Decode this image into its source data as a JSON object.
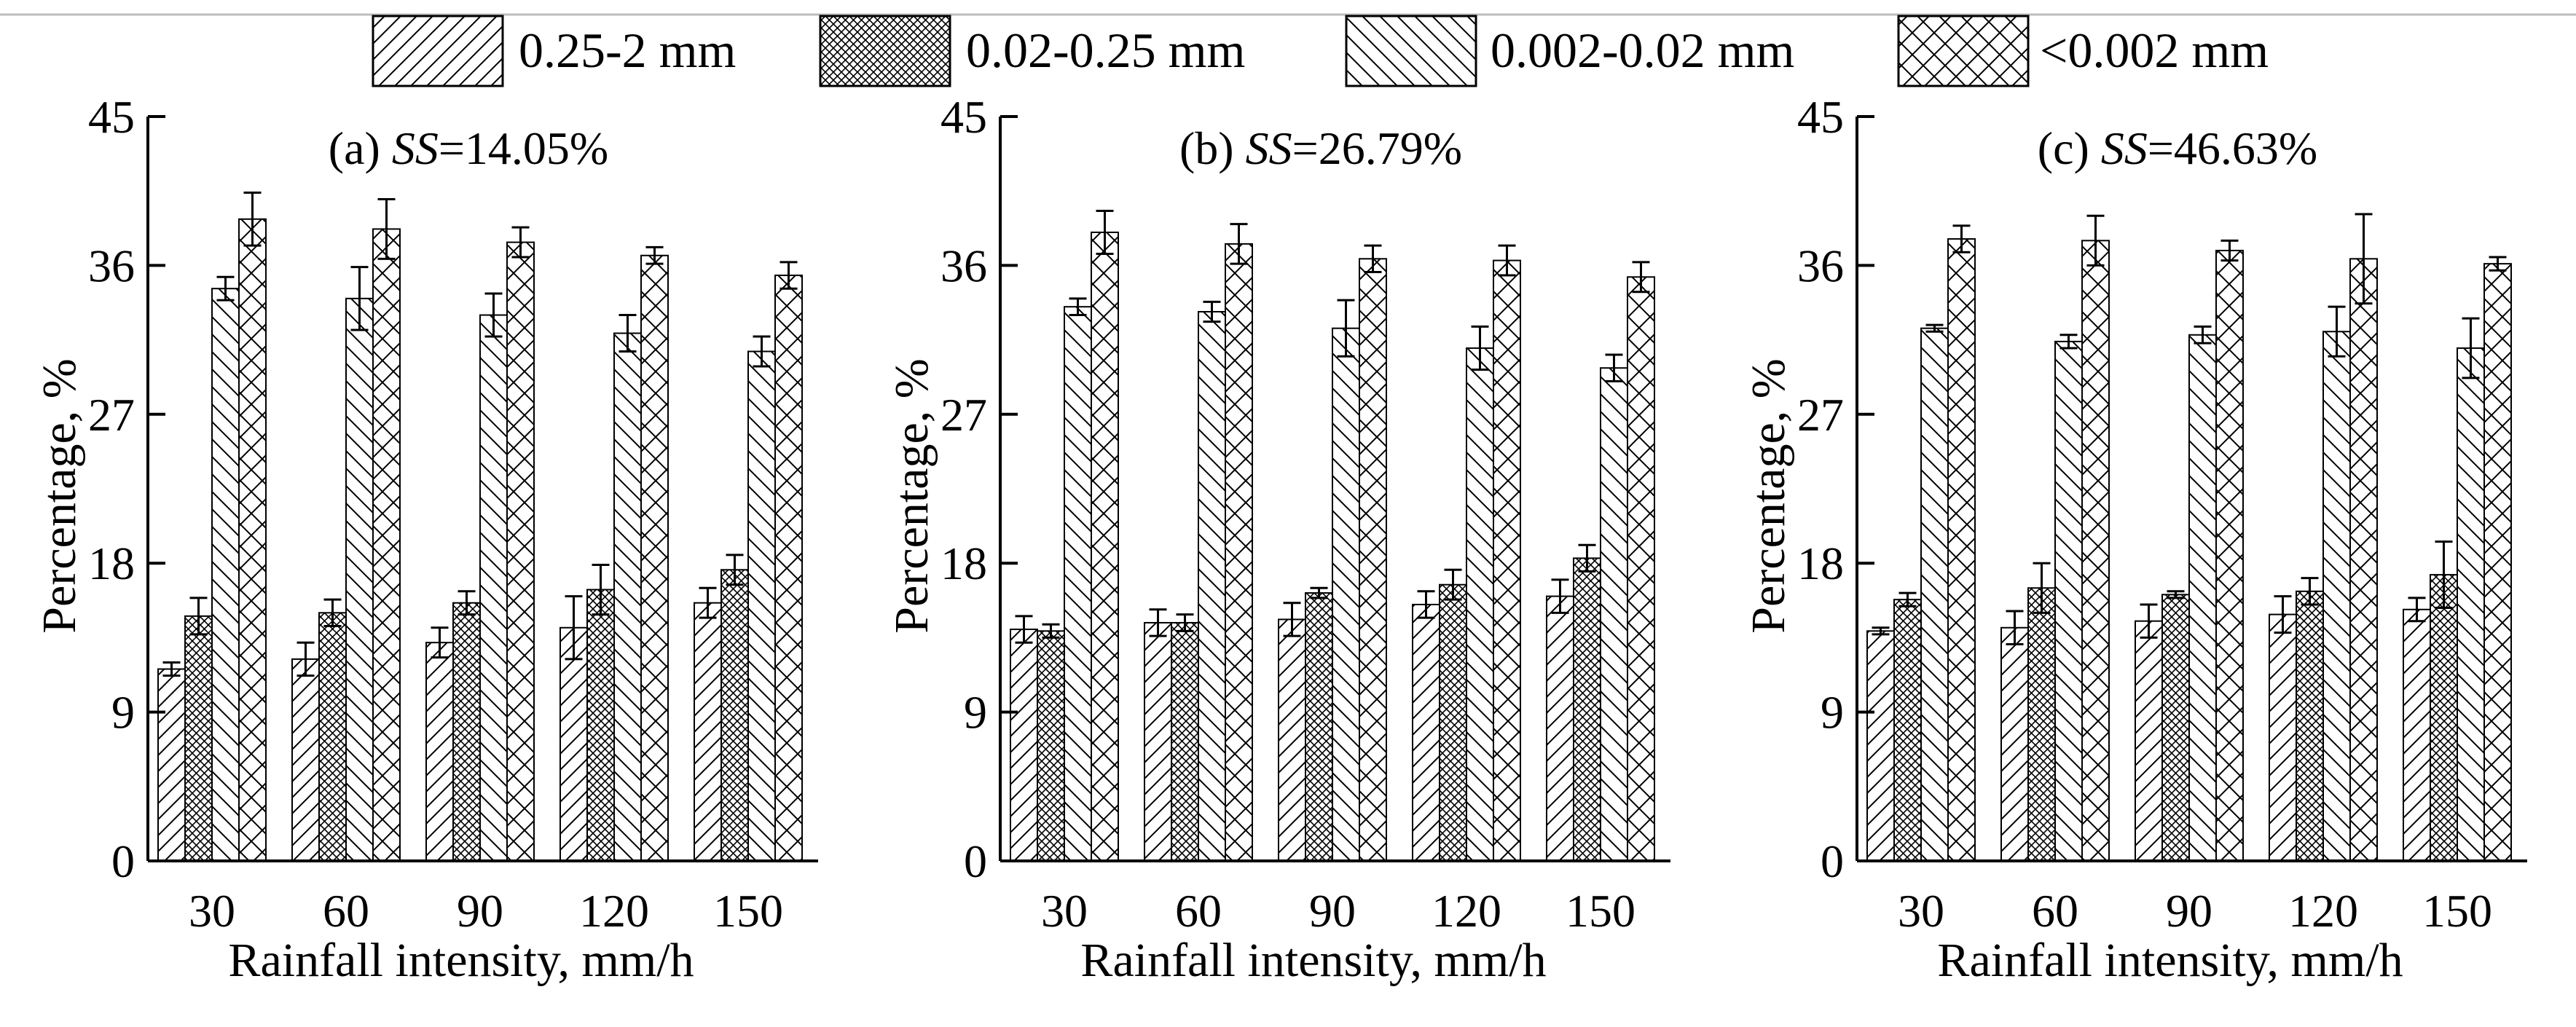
{
  "chart_data": {
    "type": "bar",
    "legend": {
      "placement": "top-center",
      "entries": [
        {
          "label": "0.25-2 mm",
          "pattern": "forward-hatch"
        },
        {
          "label": "0.02-0.25 mm",
          "pattern": "dense-crosshatch"
        },
        {
          "label": "0.002-0.02 mm",
          "pattern": "back-hatch"
        },
        {
          "label": "<0.002 mm",
          "pattern": "sparse-crosshatch"
        }
      ]
    },
    "panels": [
      {
        "title_prefix": "(a) ",
        "title_italic": "SS",
        "title_suffix": "=14.05%",
        "xlabel": "Rainfall intensity, mm/h",
        "ylabel": "Percentage, %",
        "categories": [
          "30",
          "60",
          "90",
          "120",
          "150"
        ],
        "yticks": [
          "0",
          "9",
          "18",
          "27",
          "36",
          "45"
        ],
        "ylim": [
          0,
          45
        ],
        "series": [
          {
            "name": "0.25-2 mm",
            "values": [
              11.6,
              12.2,
              13.2,
              14.1,
              15.6
            ],
            "errors": [
              0.4,
              1.0,
              0.9,
              1.9,
              0.9
            ]
          },
          {
            "name": "0.02-0.25 mm",
            "values": [
              14.8,
              15.0,
              15.6,
              16.4,
              17.6
            ],
            "errors": [
              1.1,
              0.8,
              0.7,
              1.5,
              0.9
            ]
          },
          {
            "name": "0.002-0.02 mm",
            "values": [
              34.6,
              34.0,
              33.0,
              31.9,
              30.8
            ],
            "errors": [
              0.7,
              1.9,
              1.3,
              1.1,
              0.9
            ]
          },
          {
            "name": "<0.002 mm",
            "values": [
              38.8,
              38.2,
              37.4,
              36.6,
              35.4
            ],
            "errors": [
              1.6,
              1.8,
              0.9,
              0.5,
              0.8
            ]
          }
        ]
      },
      {
        "title_prefix": "(b) ",
        "title_italic": "SS",
        "title_suffix": "=26.79%",
        "xlabel": "Rainfall intensity, mm/h",
        "ylabel": "Percentage, %",
        "categories": [
          "30",
          "60",
          "90",
          "120",
          "150"
        ],
        "yticks": [
          "0",
          "9",
          "18",
          "27",
          "36",
          "45"
        ],
        "ylim": [
          0,
          45
        ],
        "series": [
          {
            "name": "0.25-2 mm",
            "values": [
              14.0,
              14.4,
              14.6,
              15.5,
              16.0
            ],
            "errors": [
              0.8,
              0.8,
              1.0,
              0.8,
              1.0
            ]
          },
          {
            "name": "0.02-0.25 mm",
            "values": [
              13.9,
              14.4,
              16.2,
              16.7,
              18.3
            ],
            "errors": [
              0.4,
              0.5,
              0.3,
              0.9,
              0.8
            ]
          },
          {
            "name": "0.002-0.02 mm",
            "values": [
              33.5,
              33.2,
              32.2,
              31.0,
              29.8
            ],
            "errors": [
              0.5,
              0.6,
              1.7,
              1.3,
              0.8
            ]
          },
          {
            "name": "<0.002 mm",
            "values": [
              38.0,
              37.3,
              36.4,
              36.3,
              35.3
            ],
            "errors": [
              1.3,
              1.2,
              0.8,
              0.9,
              0.9
            ]
          }
        ]
      },
      {
        "title_prefix": "(c) ",
        "title_italic": "SS",
        "title_suffix": "=46.63%",
        "xlabel": "Rainfall intensity, mm/h",
        "ylabel": "Percentage, %",
        "categories": [
          "30",
          "60",
          "90",
          "120",
          "150"
        ],
        "yticks": [
          "0",
          "9",
          "18",
          "27",
          "36",
          "45"
        ],
        "ylim": [
          0,
          45
        ],
        "series": [
          {
            "name": "0.25-2 mm",
            "values": [
              13.9,
              14.1,
              14.5,
              14.9,
              15.2
            ],
            "errors": [
              0.2,
              1.0,
              1.0,
              1.1,
              0.7
            ]
          },
          {
            "name": "0.02-0.25 mm",
            "values": [
              15.8,
              16.5,
              16.1,
              16.3,
              17.3
            ],
            "errors": [
              0.4,
              1.5,
              0.2,
              0.8,
              2.0
            ]
          },
          {
            "name": "0.002-0.02 mm",
            "values": [
              32.2,
              31.4,
              31.8,
              32.0,
              31.0
            ],
            "errors": [
              0.2,
              0.4,
              0.5,
              1.5,
              1.8
            ]
          },
          {
            "name": "<0.002 mm",
            "values": [
              37.6,
              37.5,
              36.9,
              36.4,
              36.1
            ],
            "errors": [
              0.8,
              1.5,
              0.6,
              2.7,
              0.4
            ]
          }
        ]
      }
    ]
  }
}
